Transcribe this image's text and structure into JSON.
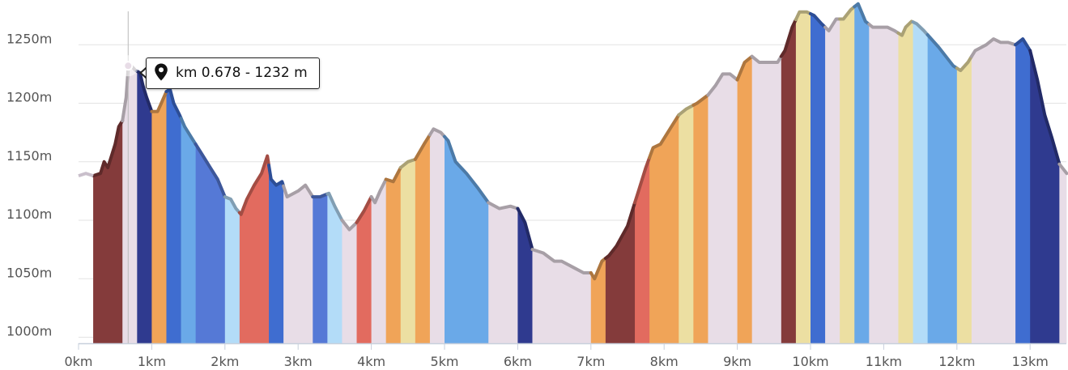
{
  "chart_data": {
    "type": "area",
    "title": "",
    "xlabel": "",
    "ylabel": "",
    "xlim": [
      0,
      13.5
    ],
    "ylim": [
      995,
      1290
    ],
    "x_ticks": [
      0,
      1,
      2,
      3,
      4,
      5,
      6,
      7,
      8,
      9,
      10,
      11,
      12,
      13
    ],
    "x_tick_labels": [
      "0km",
      "1km",
      "2km",
      "3km",
      "4km",
      "5km",
      "6km",
      "7km",
      "8km",
      "9km",
      "10km",
      "11km",
      "12km",
      "13km"
    ],
    "y_ticks": [
      1000,
      1050,
      1100,
      1150,
      1200,
      1250
    ],
    "y_tick_labels": [
      "1000m",
      "1050m",
      "1100m",
      "1150m",
      "1200m",
      "1250m"
    ],
    "grid": true,
    "elevation_profile": [
      [
        0.0,
        1138
      ],
      [
        0.1,
        1140
      ],
      [
        0.2,
        1138
      ],
      [
        0.3,
        1140
      ],
      [
        0.35,
        1150
      ],
      [
        0.4,
        1145
      ],
      [
        0.45,
        1155
      ],
      [
        0.5,
        1165
      ],
      [
        0.55,
        1180
      ],
      [
        0.6,
        1185
      ],
      [
        0.65,
        1205
      ],
      [
        0.68,
        1232
      ],
      [
        0.72,
        1232
      ],
      [
        0.78,
        1228
      ],
      [
        0.84,
        1226
      ],
      [
        0.88,
        1215
      ],
      [
        0.93,
        1205
      ],
      [
        1.0,
        1193
      ],
      [
        1.08,
        1193
      ],
      [
        1.13,
        1200
      ],
      [
        1.2,
        1210
      ],
      [
        1.25,
        1212
      ],
      [
        1.3,
        1200
      ],
      [
        1.38,
        1190
      ],
      [
        1.45,
        1180
      ],
      [
        1.55,
        1170
      ],
      [
        1.65,
        1160
      ],
      [
        1.8,
        1145
      ],
      [
        1.9,
        1135
      ],
      [
        2.0,
        1120
      ],
      [
        2.08,
        1118
      ],
      [
        2.15,
        1110
      ],
      [
        2.22,
        1105
      ],
      [
        2.3,
        1118
      ],
      [
        2.4,
        1130
      ],
      [
        2.5,
        1140
      ],
      [
        2.58,
        1155
      ],
      [
        2.63,
        1135
      ],
      [
        2.7,
        1130
      ],
      [
        2.78,
        1133
      ],
      [
        2.85,
        1120
      ],
      [
        3.0,
        1125
      ],
      [
        3.1,
        1130
      ],
      [
        3.2,
        1120
      ],
      [
        3.3,
        1120
      ],
      [
        3.42,
        1123
      ],
      [
        3.5,
        1112
      ],
      [
        3.6,
        1100
      ],
      [
        3.7,
        1092
      ],
      [
        3.8,
        1098
      ],
      [
        3.9,
        1108
      ],
      [
        4.0,
        1120
      ],
      [
        4.05,
        1115
      ],
      [
        4.12,
        1125
      ],
      [
        4.2,
        1135
      ],
      [
        4.3,
        1133
      ],
      [
        4.4,
        1145
      ],
      [
        4.5,
        1150
      ],
      [
        4.6,
        1152
      ],
      [
        4.72,
        1165
      ],
      [
        4.85,
        1178
      ],
      [
        4.95,
        1175
      ],
      [
        5.05,
        1168
      ],
      [
        5.15,
        1150
      ],
      [
        5.3,
        1140
      ],
      [
        5.45,
        1128
      ],
      [
        5.6,
        1115
      ],
      [
        5.75,
        1110
      ],
      [
        5.9,
        1112
      ],
      [
        6.0,
        1110
      ],
      [
        6.1,
        1098
      ],
      [
        6.2,
        1075
      ],
      [
        6.35,
        1072
      ],
      [
        6.5,
        1065
      ],
      [
        6.6,
        1065
      ],
      [
        6.75,
        1060
      ],
      [
        6.9,
        1055
      ],
      [
        7.0,
        1055
      ],
      [
        7.05,
        1050
      ],
      [
        7.15,
        1065
      ],
      [
        7.25,
        1070
      ],
      [
        7.35,
        1078
      ],
      [
        7.5,
        1095
      ],
      [
        7.65,
        1125
      ],
      [
        7.75,
        1145
      ],
      [
        7.85,
        1162
      ],
      [
        7.95,
        1165
      ],
      [
        8.1,
        1180
      ],
      [
        8.2,
        1190
      ],
      [
        8.3,
        1195
      ],
      [
        8.45,
        1200
      ],
      [
        8.6,
        1207
      ],
      [
        8.7,
        1215
      ],
      [
        8.8,
        1225
      ],
      [
        8.9,
        1225
      ],
      [
        9.0,
        1220
      ],
      [
        9.1,
        1235
      ],
      [
        9.2,
        1240
      ],
      [
        9.3,
        1235
      ],
      [
        9.45,
        1235
      ],
      [
        9.55,
        1235
      ],
      [
        9.65,
        1245
      ],
      [
        9.75,
        1265
      ],
      [
        9.85,
        1278
      ],
      [
        9.95,
        1278
      ],
      [
        10.05,
        1275
      ],
      [
        10.15,
        1268
      ],
      [
        10.25,
        1262
      ],
      [
        10.35,
        1272
      ],
      [
        10.45,
        1272
      ],
      [
        10.55,
        1280
      ],
      [
        10.65,
        1285
      ],
      [
        10.75,
        1270
      ],
      [
        10.85,
        1265
      ],
      [
        10.95,
        1265
      ],
      [
        11.05,
        1265
      ],
      [
        11.15,
        1262
      ],
      [
        11.25,
        1258
      ],
      [
        11.3,
        1265
      ],
      [
        11.38,
        1270
      ],
      [
        11.45,
        1268
      ],
      [
        11.55,
        1262
      ],
      [
        11.65,
        1255
      ],
      [
        11.75,
        1248
      ],
      [
        11.85,
        1240
      ],
      [
        11.95,
        1232
      ],
      [
        12.05,
        1228
      ],
      [
        12.15,
        1235
      ],
      [
        12.25,
        1245
      ],
      [
        12.4,
        1250
      ],
      [
        12.5,
        1255
      ],
      [
        12.6,
        1252
      ],
      [
        12.7,
        1252
      ],
      [
        12.8,
        1250
      ],
      [
        12.9,
        1255
      ],
      [
        13.0,
        1245
      ],
      [
        13.1,
        1220
      ],
      [
        13.2,
        1190
      ],
      [
        13.3,
        1170
      ],
      [
        13.4,
        1148
      ],
      [
        13.5,
        1140
      ]
    ],
    "gradient_bands": [
      {
        "from": 0.2,
        "to": 0.6,
        "color": "#843b3b"
      },
      {
        "from": 0.6,
        "to": 0.8,
        "color": "#e8dde7"
      },
      {
        "from": 0.8,
        "to": 1.0,
        "color": "#2f3a8f"
      },
      {
        "from": 1.0,
        "to": 1.2,
        "color": "#f0a458"
      },
      {
        "from": 1.2,
        "to": 1.4,
        "color": "#3f6dd0"
      },
      {
        "from": 1.4,
        "to": 1.6,
        "color": "#6aa9e8"
      },
      {
        "from": 1.6,
        "to": 2.0,
        "color": "#5579d6"
      },
      {
        "from": 2.0,
        "to": 2.2,
        "color": "#b3dcf8"
      },
      {
        "from": 2.2,
        "to": 2.6,
        "color": "#e26b5f"
      },
      {
        "from": 2.6,
        "to": 2.8,
        "color": "#3f6dd0"
      },
      {
        "from": 2.8,
        "to": 3.2,
        "color": "#e8dde7"
      },
      {
        "from": 3.2,
        "to": 3.4,
        "color": "#5579d6"
      },
      {
        "from": 3.4,
        "to": 3.6,
        "color": "#b3dcf8"
      },
      {
        "from": 3.6,
        "to": 3.8,
        "color": "#e8dde7"
      },
      {
        "from": 3.8,
        "to": 4.0,
        "color": "#e26b5f"
      },
      {
        "from": 4.0,
        "to": 4.2,
        "color": "#e8dde7"
      },
      {
        "from": 4.2,
        "to": 4.4,
        "color": "#f0a458"
      },
      {
        "from": 4.4,
        "to": 4.6,
        "color": "#ecdfa2"
      },
      {
        "from": 4.6,
        "to": 4.8,
        "color": "#f0a458"
      },
      {
        "from": 4.8,
        "to": 5.0,
        "color": "#e8dde7"
      },
      {
        "from": 5.0,
        "to": 5.6,
        "color": "#6aa9e8"
      },
      {
        "from": 5.6,
        "to": 6.0,
        "color": "#e8dde7"
      },
      {
        "from": 6.0,
        "to": 6.2,
        "color": "#2f3a8f"
      },
      {
        "from": 6.2,
        "to": 7.0,
        "color": "#e8dde7"
      },
      {
        "from": 7.0,
        "to": 7.2,
        "color": "#f0a458"
      },
      {
        "from": 7.2,
        "to": 7.6,
        "color": "#843b3b"
      },
      {
        "from": 7.6,
        "to": 7.8,
        "color": "#e26b5f"
      },
      {
        "from": 7.8,
        "to": 8.2,
        "color": "#f0a458"
      },
      {
        "from": 8.2,
        "to": 8.4,
        "color": "#ecdfa2"
      },
      {
        "from": 8.4,
        "to": 8.6,
        "color": "#f0a458"
      },
      {
        "from": 8.6,
        "to": 9.0,
        "color": "#e8dde7"
      },
      {
        "from": 9.0,
        "to": 9.2,
        "color": "#f0a458"
      },
      {
        "from": 9.2,
        "to": 9.6,
        "color": "#e8dde7"
      },
      {
        "from": 9.6,
        "to": 9.8,
        "color": "#843b3b"
      },
      {
        "from": 9.8,
        "to": 10.0,
        "color": "#ecdfa2"
      },
      {
        "from": 10.0,
        "to": 10.2,
        "color": "#3f6dd0"
      },
      {
        "from": 10.2,
        "to": 10.4,
        "color": "#e8dde7"
      },
      {
        "from": 10.4,
        "to": 10.6,
        "color": "#ecdfa2"
      },
      {
        "from": 10.6,
        "to": 10.8,
        "color": "#6aa9e8"
      },
      {
        "from": 10.8,
        "to": 11.2,
        "color": "#e8dde7"
      },
      {
        "from": 11.2,
        "to": 11.4,
        "color": "#ecdfa2"
      },
      {
        "from": 11.4,
        "to": 11.6,
        "color": "#b3dcf8"
      },
      {
        "from": 11.6,
        "to": 12.0,
        "color": "#6aa9e8"
      },
      {
        "from": 12.0,
        "to": 12.2,
        "color": "#ecdfa2"
      },
      {
        "from": 12.2,
        "to": 12.8,
        "color": "#e8dde7"
      },
      {
        "from": 12.8,
        "to": 13.0,
        "color": "#3f6dd0"
      },
      {
        "from": 13.0,
        "to": 13.4,
        "color": "#2f3a8f"
      },
      {
        "from": 13.4,
        "to": 13.5,
        "color": "#e8dde7"
      }
    ],
    "tooltip": {
      "x": 0.678,
      "y": 1232,
      "text": "km 0.678 - 1232 m",
      "icon": "map-pin-icon"
    }
  }
}
